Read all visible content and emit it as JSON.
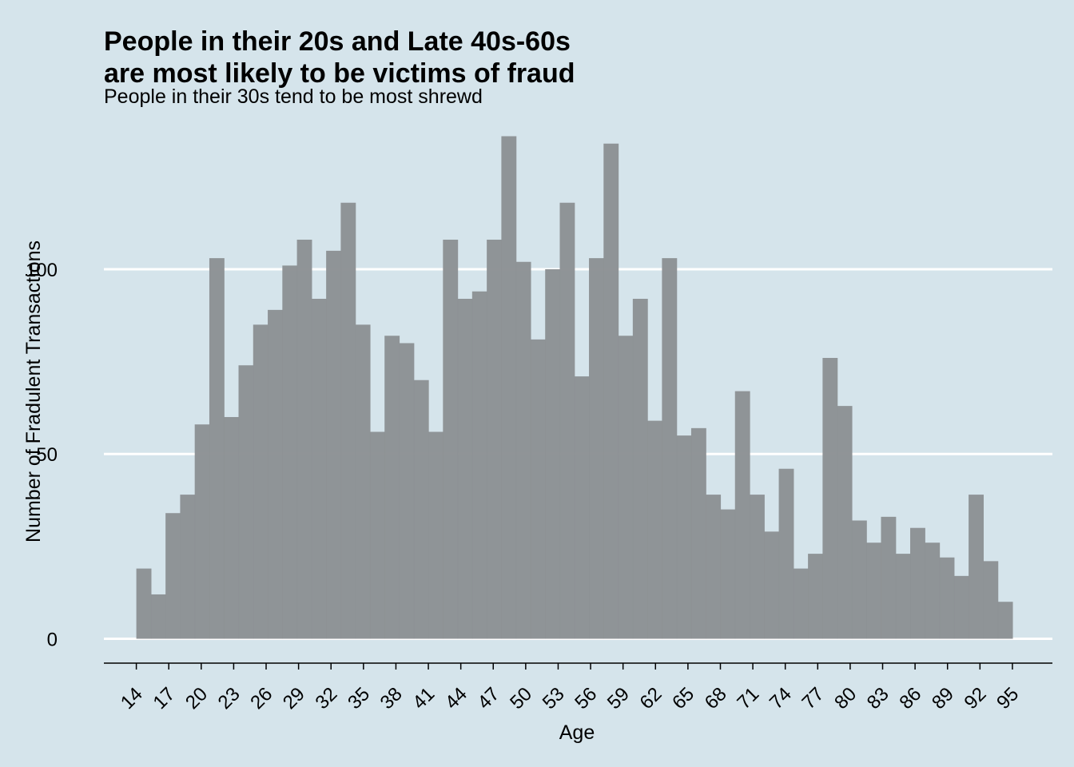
{
  "chart_data": {
    "type": "bar",
    "title_lines": [
      "People in their 20s and Late 40s-60s",
      "are most likely to be victims of fraud"
    ],
    "subtitle": "People in their 30s tend to be most shrewd",
    "xlabel": "Age",
    "ylabel": "Number of Fradulent Transactions",
    "xlim": [
      11,
      98.7
    ],
    "ylim": [
      -6.6,
      140
    ],
    "x_ticks": [
      14,
      17,
      20,
      23,
      26,
      29,
      32,
      35,
      38,
      41,
      44,
      47,
      50,
      53,
      56,
      59,
      62,
      65,
      68,
      71,
      74,
      77,
      80,
      83,
      86,
      89,
      92,
      95
    ],
    "y_ticks": [
      0,
      50,
      100
    ],
    "grid": "horizontal",
    "bar_color": "#8c9194",
    "background": "#d5e4eb",
    "bin_edges": [
      14.0,
      15.35,
      16.7,
      18.05,
      19.4,
      20.75,
      22.1,
      23.45,
      24.8,
      26.15,
      27.5,
      28.85,
      30.2,
      31.55,
      32.9,
      34.25,
      35.6,
      36.95,
      38.3,
      39.65,
      41.0,
      42.35,
      43.7,
      45.05,
      46.4,
      47.75,
      49.1,
      50.45,
      51.8,
      53.15,
      54.5,
      55.85,
      57.2,
      58.55,
      59.9,
      61.25,
      62.6,
      63.95,
      65.3,
      66.65,
      68.0,
      69.35,
      70.7,
      72.05,
      73.4,
      74.75,
      76.1,
      77.45,
      78.8,
      80.15,
      81.5,
      82.85,
      84.2,
      85.55,
      86.9,
      88.25,
      89.6,
      90.95,
      92.3,
      93.65,
      95.0
    ],
    "values": [
      19,
      12,
      34,
      39,
      58,
      103,
      60,
      74,
      85,
      89,
      101,
      108,
      92,
      105,
      118,
      85,
      56,
      82,
      80,
      70,
      56,
      108,
      92,
      94,
      108,
      136,
      102,
      81,
      100,
      118,
      71,
      103,
      134,
      82,
      92,
      59,
      103,
      55,
      57,
      39,
      35,
      67,
      39,
      29,
      46,
      19,
      23,
      76,
      63,
      32,
      26,
      33,
      23,
      30,
      26,
      22,
      17,
      39,
      21,
      10
    ]
  }
}
